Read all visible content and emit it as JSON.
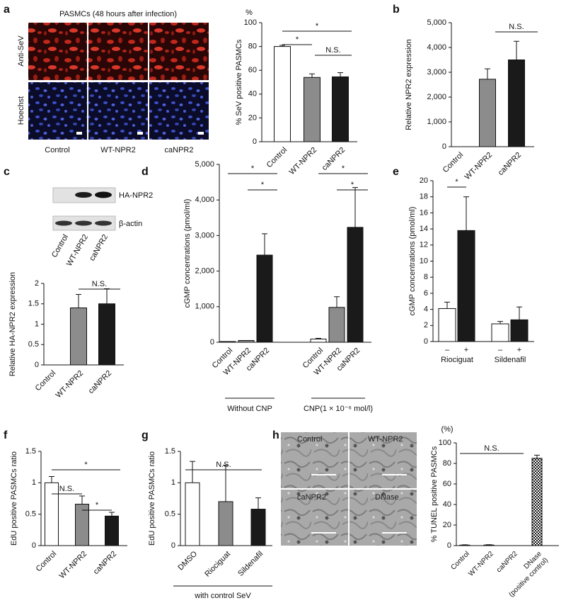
{
  "figure": {
    "panel_labels": [
      "a",
      "b",
      "c",
      "d",
      "e",
      "f",
      "g",
      "h"
    ],
    "a_images": {
      "title": "PASMCs (48 hours after infection)",
      "rows": [
        "Anti-SeV",
        "Hoechst"
      ],
      "columns": [
        "Control",
        "WT-NPR2",
        "caNPR2"
      ]
    },
    "c_blot": {
      "bands": [
        "HA-NPR2",
        "β-actin"
      ],
      "lanes": [
        "Control",
        "WT-NPR2",
        "caNPR2"
      ]
    },
    "h_images": {
      "labels": [
        "Control",
        "WT-NPR2",
        "caNPR2",
        "DNase"
      ]
    }
  },
  "chart_data": [
    {
      "type": "bar",
      "ylabel": "% SeV positive PASMCs",
      "unit_label": "%",
      "ylim": [
        0,
        100
      ],
      "yticks": [
        0,
        20,
        40,
        60,
        80,
        100
      ],
      "colors": [
        "#ffffff",
        "#8c8c8c",
        "#1a1a1a"
      ],
      "groups": [
        {
          "categories": [
            "Control",
            "WT-NPR2",
            "caNPR2"
          ],
          "values": [
            80,
            54,
            54.5
          ],
          "errors": [
            1,
            3,
            3.5
          ]
        }
      ],
      "annotations": [
        "*",
        "*",
        "N.S."
      ]
    },
    {
      "type": "bar",
      "ylabel": "Relative NPR2 expression",
      "ylim": [
        0,
        5000
      ],
      "yticks": [
        0,
        {
          "value": 1000,
          "label": "1,000"
        },
        {
          "value": 2000,
          "label": "2,000"
        },
        {
          "value": 3000,
          "label": "3,000"
        },
        {
          "value": 4000,
          "label": "4,000"
        },
        {
          "value": 5000,
          "label": "5,000"
        }
      ],
      "colors": [
        "#ffffff",
        "#8c8c8c",
        "#1a1a1a"
      ],
      "groups": [
        {
          "categories": [
            "Control",
            "WT-NPR2",
            "caNPR2"
          ],
          "values": [
            0,
            2720,
            3500
          ],
          "errors": [
            null,
            420,
            750
          ]
        }
      ],
      "annotations": [
        "N.S."
      ]
    },
    {
      "type": "bar",
      "ylabel": "Relative HA-NPR2 expression",
      "ylim": [
        0,
        2
      ],
      "yticks": [
        0,
        0.5,
        1,
        1.5,
        2
      ],
      "colors": [
        "#ffffff",
        "#8c8c8c",
        "#1a1a1a"
      ],
      "groups": [
        {
          "categories": [
            "Control",
            "WT-NPR2",
            "caNPR2"
          ],
          "values": [
            0,
            1.4,
            1.5
          ],
          "errors": [
            null,
            0.33,
            0.37
          ]
        }
      ],
      "annotations": [
        "N.S."
      ]
    },
    {
      "type": "bar",
      "ylabel": "cGMP concentrations (pmol/ml)",
      "ylim": [
        0,
        5000
      ],
      "yticks": [
        0,
        {
          "value": 1000,
          "label": "1,000"
        },
        {
          "value": 2000,
          "label": "2,000"
        },
        {
          "value": 3000,
          "label": "3,000"
        },
        {
          "value": 4000,
          "label": "4,000"
        },
        {
          "value": 5000,
          "label": "5,000"
        }
      ],
      "colors": [
        "#ffffff",
        "#8c8c8c",
        "#1a1a1a"
      ],
      "groups": [
        {
          "label": "Without CNP",
          "categories": [
            "Control",
            "WT-NPR2",
            "caNPR2"
          ],
          "values": [
            20,
            50,
            2450
          ],
          "errors": [
            null,
            null,
            600
          ]
        },
        {
          "label": "CNP(1 × 10⁻⁶ mol/l)",
          "categories": [
            "Control",
            "WT-NPR2",
            "caNPR2"
          ],
          "values": [
            90,
            980,
            3230
          ],
          "errors": [
            20,
            300,
            1120
          ]
        }
      ],
      "annotations": [
        "*",
        "*",
        "*",
        "*"
      ]
    },
    {
      "type": "bar",
      "ylabel": "cGMP concentrations (pmol/ml)",
      "ylim": [
        0,
        20
      ],
      "yticks": [
        0,
        2,
        4,
        6,
        8,
        10,
        12,
        14,
        16,
        18,
        20
      ],
      "colors": [
        "#ffffff",
        "#1a1a1a"
      ],
      "groups": [
        {
          "label": "Riociguat",
          "categories": [
            "–",
            "+"
          ],
          "values": [
            4.1,
            13.8
          ],
          "errors": [
            0.8,
            4.2
          ]
        },
        {
          "label": "Sildenafil",
          "categories": [
            "–",
            "+"
          ],
          "values": [
            2.2,
            2.7
          ],
          "errors": [
            0.3,
            1.6
          ]
        }
      ],
      "annotations": [
        "*"
      ]
    },
    {
      "type": "bar",
      "ylabel": "EdU positive PASMCs ratio",
      "ylim": [
        0,
        1.5
      ],
      "yticks": [
        0,
        0.5,
        1,
        1.5
      ],
      "colors": [
        "#ffffff",
        "#8c8c8c",
        "#1a1a1a"
      ],
      "groups": [
        {
          "categories": [
            "Control",
            "WT-NPR2",
            "caNPR2"
          ],
          "values": [
            1,
            0.66,
            0.47
          ],
          "errors": [
            0.1,
            0.13,
            0.06
          ]
        }
      ],
      "annotations": [
        "*",
        "N.S.",
        "*"
      ]
    },
    {
      "type": "bar",
      "ylabel": "EdU positive PASMCs ratio",
      "ylim": [
        0,
        1.5
      ],
      "yticks": [
        0,
        0.5,
        1,
        1.5
      ],
      "colors": [
        "#ffffff",
        "#8c8c8c",
        "#1a1a1a"
      ],
      "groups": [
        {
          "label": "with control SeV",
          "categories": [
            "DMSO",
            "Riociguat",
            "Sildenafil"
          ],
          "values": [
            1,
            0.7,
            0.58
          ],
          "errors": [
            0.34,
            0.58,
            0.18
          ]
        }
      ],
      "annotations": [
        "N.S."
      ]
    },
    {
      "type": "bar",
      "ylabel": "% TUNEL positive PASMCs",
      "unit_label": "(%)",
      "ylim": [
        0,
        100
      ],
      "yticks": [
        0,
        20,
        40,
        60,
        80,
        100
      ],
      "colors": [
        "#ffffff",
        "#ffffff",
        "#ffffff",
        "#ffffff"
      ],
      "fills": [
        "plain",
        "plain",
        "plain",
        "checker"
      ],
      "groups": [
        {
          "categories": [
            "Control",
            "WT-NPR2",
            "caNPR2",
            "DNase"
          ],
          "values": [
            0.5,
            0.6,
            0,
            85
          ],
          "errors": [
            0.3,
            0.3,
            null,
            3
          ]
        }
      ],
      "note": "(positive control)",
      "annotations": [
        "N.S."
      ]
    }
  ]
}
